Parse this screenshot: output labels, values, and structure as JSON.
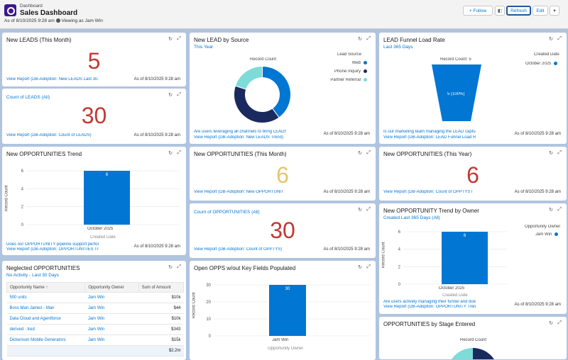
{
  "header": {
    "breadcrumb": "Dashboard",
    "title": "Sales Dashboard",
    "as_of": "As of 8/10/2025 9:28 am",
    "viewing": "Viewing as Jam Win",
    "follow": "+ Follow",
    "refresh": "Refresh",
    "edit": "Edit"
  },
  "colors": {
    "blue": "#0176d3",
    "dark_red": "#c23934",
    "gold": "#e6c56f",
    "navy": "#1a2a5e",
    "teal": "#7ddbd8"
  },
  "c1": {
    "title": "New LEADS (This Month)",
    "value": "5",
    "link": "View Report (DB-Adoption: New LEADS Last 30...",
    "asof": "As of 8/10/2025 9:28 am"
  },
  "c2": {
    "subtitle": "Count of LEADS (All)",
    "value": "30",
    "link": "View Report (DB-Adoption: Count of LEADS)",
    "asof": "As of 8/10/2025 9:28 am"
  },
  "c3": {
    "title": "New LEAD by Source",
    "subtitle": "This Year",
    "inner": "Record Count",
    "legend_title": "Lead Source",
    "legend": [
      "Web",
      "Phone Inquiry",
      "Partner Referral"
    ],
    "desc": "Are users leveraging all channels to bring LEADS i",
    "link": "View Report (DB-Adoption: New LEADS Trend)",
    "asof": "As of 8/10/2025 9:28 am"
  },
  "c4": {
    "title": "LEAD Funnel Load Rate",
    "subtitle": "Last 365 Days",
    "top": "Record Count: 5",
    "bar_label": "5 (100%)",
    "legend_title": "Created Date",
    "legend": [
      "October 2025"
    ],
    "desc": "Is our marketing team managing the LEAD capture",
    "link": "View Report (DB-Adoption: LEAD Funnel Load Rat",
    "asof": "As of 8/10/2025 9:28 am"
  },
  "c5": {
    "title": "New OPPORTUNITIES Trend",
    "bar_label": "6",
    "ylabel": "Record Count",
    "xcat": "October 2025",
    "xlabel": "Created Date",
    "desc": "Does our OPPORTUNITY pipeline support perform",
    "link": "View Report (DB-Adoption: OPPORTUNITIES Tren",
    "asof": "As of 8/10/2025 9:28 am",
    "ticks": [
      "6",
      "4",
      "2",
      "0"
    ]
  },
  "c6": {
    "title": "New OPPORTUNITIES (This Month)",
    "value": "6",
    "link": "View Report (DB-Adoption: New OPPORTUNITI...",
    "asof": "As of 8/10/2025 9:28 am"
  },
  "c7": {
    "title": "New OPPORTUNITIES (This Year)",
    "value": "6",
    "link": "View Report (DB-Adoption: Count of OPPTYS la...",
    "asof": "As of 8/10/2025 9:28 am"
  },
  "c8": {
    "subtitle": "Count of OPPORTUNITIES (All)",
    "value": "30",
    "link": "View Report (DB-Adoption: Count of OPPTYS)",
    "asof": "As of 8/10/2025 9:28 am"
  },
  "c9": {
    "title": "New OPPORTUNITY Trend by Owner",
    "subtitle": "Created Last 365 Days (All)",
    "ylabel": "Record Count",
    "xcat": "October 2025",
    "xlabel": "Created Date",
    "legend_title": "Opportunity Owner",
    "legend": [
      "Jam Win"
    ],
    "desc": "Are users actively managing their funnel and does",
    "link": "View Report (DB-Adoption: OPPORTUNITY Trend",
    "asof": "As of 8/10/2025 9:28 am",
    "ticks": [
      "6",
      "4",
      "2",
      "0"
    ]
  },
  "c10": {
    "title": "Neglected OPPORTUNITIES",
    "subtitle": "No Activity - Last 30 Days",
    "headers": [
      "Opportunity Name ↑",
      "Opportunity Owner",
      "Sum of Amount"
    ],
    "rows": [
      [
        "500 units",
        "Jam Win",
        "$10k"
      ],
      [
        "Boss Man James - Man",
        "Jam Win",
        "$44"
      ],
      [
        "Data Cloud and Agentforce",
        "Jam Win",
        "$10k"
      ],
      [
        "derived - tred",
        "Jam Win",
        "$343"
      ],
      [
        "Dickenson Mobile Generators",
        "Jam Win",
        "$15k"
      ]
    ],
    "total": "$2.2m"
  },
  "c11": {
    "title": "Open OPPS w/out Key Fields Populated",
    "bar_label": "30",
    "ylabel": "Record Count",
    "xcat": "Jam Win",
    "xlabel": "Opportunity Owner",
    "ticks": [
      "30",
      "20",
      "10",
      "0"
    ]
  },
  "c12": {
    "title": "OPPORTUNITIES by Stage Entered",
    "inner": "Record Count"
  },
  "chart_data": [
    {
      "type": "pie",
      "title": "New LEAD by Source",
      "categories": [
        "Web",
        "Phone Inquiry",
        "Partner Referral"
      ],
      "values": [
        2,
        2,
        1
      ]
    },
    {
      "type": "bar",
      "title": "New OPPORTUNITIES Trend",
      "categories": [
        "October 2025"
      ],
      "values": [
        6
      ],
      "ylim": [
        0,
        6
      ]
    },
    {
      "type": "bar",
      "title": "New OPPORTUNITY Trend by Owner",
      "categories": [
        "October 2025"
      ],
      "values": [
        6
      ],
      "ylim": [
        0,
        6
      ]
    },
    {
      "type": "bar",
      "title": "Open OPPS w/out Key Fields Populated",
      "categories": [
        "Jam Win"
      ],
      "values": [
        30
      ],
      "ylim": [
        0,
        30
      ]
    }
  ]
}
